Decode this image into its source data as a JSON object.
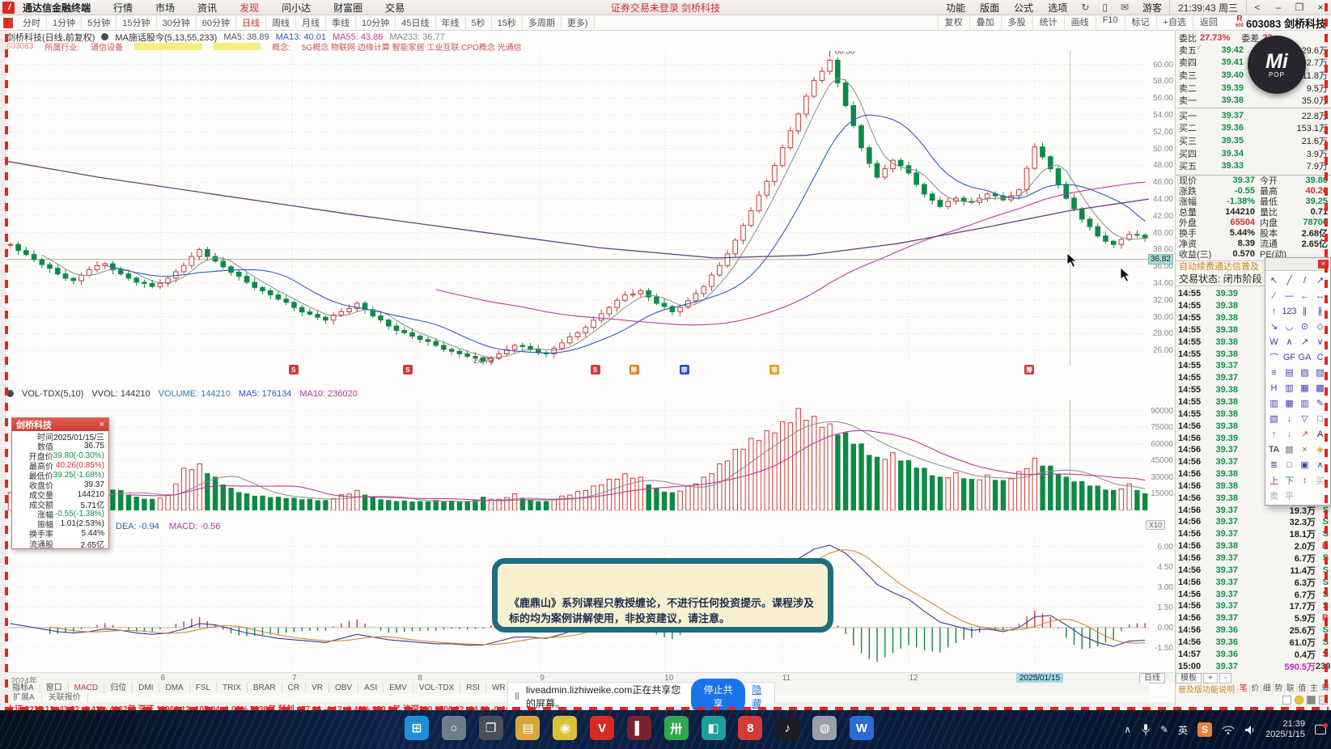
{
  "menubar": {
    "logo": "V",
    "items": [
      "通达信金融终端",
      "行情",
      "市场",
      "资讯",
      "发现",
      "问小达",
      "财富圈",
      "交易"
    ],
    "active": "发现",
    "notice": "证券交易未登录 剑桥科技",
    "right_items": [
      "功能",
      "版面",
      "公式",
      "选项"
    ],
    "icons": [
      "refresh-icon",
      "mobile-icon",
      "mail-icon"
    ],
    "user": "游客",
    "clock": "21:39:43 周三",
    "win_buttons": [
      "<",
      "–",
      "❐",
      "×"
    ]
  },
  "toolbar": {
    "periods": [
      "分时",
      "1分钟",
      "5分钟",
      "15分钟",
      "30分钟",
      "60分钟",
      "日线",
      "周线",
      "月线",
      "季线",
      "10分钟",
      "45日线",
      "年线",
      "5秒",
      "15秒",
      "多周期",
      "更多)"
    ],
    "active_period": "日线",
    "actions": [
      "复权",
      "叠加",
      "多股",
      "统计",
      "画线",
      "F10",
      "标记",
      "+自选",
      "返回"
    ]
  },
  "stock": {
    "margin_flag": "R",
    "sub_flag": "600",
    "code_name": "603083 剑桥科技"
  },
  "chart_header": {
    "title": "剑桥科技(日线,前复权)",
    "formula": "MA施话股今(5,13,55,233)",
    "ma5": "MA5: 38.89",
    "ma13": "MA13: 40.01",
    "ma55": "MA55: 43.86",
    "ma233": "MA233: 36.77",
    "code": "603083",
    "industry_label": "所属行业:",
    "industry": "通信设备",
    "concept_label": "概念:",
    "concepts": "5G概念 物联网 边缘计算 智能家居 工业互联 CPO概念 光通信"
  },
  "vol_header": {
    "name": "VOL-TDX(5,10)",
    "vvol": "VVOL: 144210",
    "volume": "VOLUME: 144210",
    "ma5": "MA5: 176134",
    "ma10": "MA10: 236020"
  },
  "macd_header": {
    "dea": "DEA: -0.94",
    "macd": "MACD: -0.56"
  },
  "chart": {
    "closes": [
      38.6,
      37.4,
      36.2,
      35.1,
      34.3,
      35.6,
      36.3,
      35.1,
      34.1,
      33.6,
      34.6,
      36.1,
      38.0,
      36.6,
      35.3,
      34.1,
      33.1,
      32.1,
      31.1,
      30.3,
      29.6,
      30.6,
      31.6,
      30.1,
      28.9,
      28.1,
      27.3,
      26.6,
      25.9,
      25.3,
      24.73,
      25.6,
      26.6,
      26.1,
      25.6,
      26.9,
      28.1,
      29.6,
      31.1,
      32.6,
      33.1,
      31.6,
      30.6,
      31.9,
      33.6,
      36.1,
      39.1,
      42.6,
      46.1,
      50.1,
      54.1,
      58.1,
      60.5,
      55.1,
      50.1,
      46.6,
      48.6,
      47.1,
      44.6,
      43.1,
      44.1,
      43.6,
      44.6,
      43.9,
      45.1,
      50.2,
      47.6,
      44.1,
      41.6,
      39.6,
      38.6,
      39.8,
      39.37
    ],
    "volumes": [
      16000,
      14000,
      12000,
      11000,
      10000,
      15000,
      22000,
      18000,
      12000,
      10000,
      14000,
      38000,
      42000,
      30000,
      20000,
      15000,
      13000,
      12000,
      11000,
      10000,
      9000,
      14000,
      18000,
      12000,
      9000,
      8500,
      8000,
      9000,
      8500,
      8000,
      12000,
      10000,
      15000,
      9000,
      8000,
      13000,
      17000,
      22000,
      28000,
      33000,
      30000,
      20000,
      16000,
      22000,
      30000,
      42000,
      55000,
      65000,
      72000,
      80000,
      92000,
      85000,
      78000,
      70000,
      60000,
      48000,
      52000,
      45000,
      38000,
      30000,
      34000,
      28000,
      32000,
      27000,
      35000,
      47000,
      40000,
      30000,
      26000,
      22000,
      18000,
      24000,
      15000
    ],
    "dif": [
      0.3,
      0.1,
      -0.1,
      -0.3,
      -0.4,
      -0.3,
      -0.1,
      -0.2,
      -0.4,
      -0.5,
      -0.4,
      -0.1,
      0.3,
      0.2,
      -0.1,
      -0.4,
      -0.6,
      -0.8,
      -0.9,
      -1.0,
      -1.1,
      -0.8,
      -0.5,
      -0.7,
      -0.9,
      -1.0,
      -1.1,
      -1.2,
      -1.2,
      -1.3,
      -1.3,
      -1.0,
      -0.7,
      -0.7,
      -0.8,
      -0.5,
      -0.1,
      0.3,
      0.7,
      1.0,
      1.0,
      0.6,
      0.2,
      0.3,
      0.7,
      1.2,
      1.9,
      2.7,
      3.5,
      4.3,
      5.1,
      5.8,
      6.1,
      5.5,
      4.4,
      3.2,
      2.6,
      2.1,
      1.2,
      0.4,
      0.1,
      -0.2,
      -0.1,
      -0.3,
      0.0,
      0.8,
      0.9,
      0.2,
      -0.6,
      -1.1,
      -1.4,
      -1.0,
      -0.94
    ],
    "ma233_anchors": [
      [
        0,
        48.5
      ],
      [
        0.08,
        46.6
      ],
      [
        0.18,
        44.6
      ],
      [
        0.3,
        42.2
      ],
      [
        0.42,
        40.0
      ],
      [
        0.52,
        38.2
      ],
      [
        0.62,
        37.0
      ],
      [
        0.7,
        37.3
      ],
      [
        0.78,
        38.7
      ],
      [
        0.86,
        40.7
      ],
      [
        0.93,
        42.6
      ],
      [
        1,
        44.0
      ]
    ],
    "price_ticks": [
      "60.00",
      "58.00",
      "56.00",
      "54.00",
      "52.00",
      "50.00",
      "48.00",
      "46.00",
      "44.00",
      "42.00",
      "40.00",
      "38.00",
      "36.00",
      "34.00",
      "32.00",
      "30.00",
      "28.00",
      "26.00"
    ],
    "vol_ticks": [
      "90000",
      "75000",
      "60000",
      "45000",
      "30000",
      "15000"
    ],
    "macd_ticks": [
      "6.00",
      "4.50",
      "3.00",
      "1.50",
      "0.00",
      "-1.50"
    ],
    "peak_label": "60.50",
    "trough_label": "24.73",
    "level_label": "36.82",
    "level_value": 36.82,
    "x10": "X10",
    "date_tag": "2025/01/15",
    "period_tag": "日线",
    "xaxis": [
      [
        "2024年",
        0.004
      ],
      [
        "6",
        0.135
      ],
      [
        "7",
        0.25
      ],
      [
        "8",
        0.36
      ],
      [
        "9",
        0.467
      ],
      [
        "10",
        0.576
      ],
      [
        "11",
        0.679
      ],
      [
        "12",
        0.79
      ],
      [
        "1",
        0.9
      ]
    ],
    "markers": [
      [
        0.247,
        "S",
        "#d23b3b"
      ],
      [
        0.347,
        "S",
        "#d23b3b"
      ],
      [
        0.511,
        "S",
        "#d23b3b"
      ],
      [
        0.545,
        "筹",
        "#e0821e"
      ],
      [
        0.589,
        "审",
        "#2a52c8"
      ],
      [
        0.668,
        "审",
        "#e0a11e"
      ],
      [
        0.891,
        "筹",
        "#d23b3b"
      ]
    ],
    "crosshair_f": 0.931
  },
  "indicator_tabs": {
    "items": [
      "指标A",
      "窗口",
      "MACD",
      "归位",
      "DMI",
      "DMA",
      "FSL",
      "TRIX",
      "BRAR",
      "CR",
      "VR",
      "OBV",
      "ASI",
      "EMV",
      "VOL-TDX",
      "RSI",
      "WR",
      "SAR",
      "KDJ",
      "CCI",
      "ROC",
      "MTM",
      "BOLL"
    ],
    "active": "MACD"
  },
  "bottom_row2": [
    "扩展A",
    "关联报价"
  ],
  "marquee": "上证 3227.12  -43.82  -0.43%  4662亿    深证 10960.12  -105.04  -1.03%  7336亿    科创 477.66  -4.12  -0.42%  939.0亿    沪深300 3706.02  -24.61  -0.64%",
  "right_panel": {
    "weibi_label": "委比",
    "weibi": "27.73%",
    "weicha_label": "委差",
    "weicha": "23",
    "ask_collapse": "Y",
    "asks": [
      [
        "卖五",
        "39.42",
        "29.6万"
      ],
      [
        "卖四",
        "39.41",
        "32.7万"
      ],
      [
        "卖三",
        "39.40",
        "11.8万"
      ],
      [
        "卖二",
        "39.39",
        "9.5万"
      ],
      [
        "卖一",
        "39.38",
        "35.0万"
      ]
    ],
    "bids": [
      [
        "买一",
        "39.37",
        "22.8万"
      ],
      [
        "买二",
        "39.36",
        "153.1万"
      ],
      [
        "买三",
        "39.35",
        "21.6万"
      ],
      [
        "买四",
        "39.34",
        "3.9万"
      ],
      [
        "买五",
        "39.33",
        "7.9万"
      ]
    ],
    "info": [
      [
        "现价",
        "39.37",
        "g",
        "今开",
        "39.80",
        "g"
      ],
      [
        "涨跌",
        "-0.55",
        "g",
        "最高",
        "40.26",
        "r"
      ],
      [
        "涨幅",
        "-1.38%",
        "g",
        "最低",
        "39.25",
        "g"
      ],
      [
        "总量",
        "144210",
        "k",
        "量比",
        "0.71",
        "k"
      ],
      [
        "外盘",
        "65504",
        "r",
        "内盘",
        "78706",
        "g"
      ],
      [
        "换手",
        "5.44%",
        "k",
        "股本",
        "2.68亿",
        "k"
      ],
      [
        "净资",
        "8.39",
        "k",
        "流通",
        "2.65亿",
        "k"
      ],
      [
        "收益(三)",
        "0.570",
        "k",
        "PE(动)",
        "",
        "k"
      ]
    ],
    "renew_notice": "自动续费通达信普及",
    "status": "交易状态: 闭市阶段",
    "ticks": [
      [
        "14:55",
        "39.39",
        "",
        ""
      ],
      [
        "14:55",
        "39.38",
        "",
        ""
      ],
      [
        "14:55",
        "39.38",
        "",
        ""
      ],
      [
        "14:55",
        "39.38",
        "",
        ""
      ],
      [
        "14:55",
        "39.38",
        "",
        ""
      ],
      [
        "14:55",
        "39.38",
        "",
        ""
      ],
      [
        "14:55",
        "39.37",
        "",
        ""
      ],
      [
        "14:55",
        "39.37",
        "",
        ""
      ],
      [
        "14:55",
        "39.38",
        "",
        ""
      ],
      [
        "14:55",
        "39.38",
        "",
        ""
      ],
      [
        "14:55",
        "39.38",
        "",
        ""
      ],
      [
        "14:56",
        "39.38",
        "",
        ""
      ],
      [
        "14:56",
        "39.39",
        "",
        ""
      ],
      [
        "14:56",
        "39.37",
        "",
        ""
      ],
      [
        "14:56",
        "39.37",
        "",
        ""
      ],
      [
        "14:56",
        "39.38",
        "",
        ""
      ],
      [
        "14:56",
        "39.38",
        "6.7万",
        "B"
      ],
      [
        "14:56",
        "39.38",
        "11.8万",
        "S"
      ],
      [
        "14:56",
        "39.37",
        "19.3万",
        "S"
      ],
      [
        "14:56",
        "39.37",
        "32.3万",
        "S"
      ],
      [
        "14:56",
        "39.37",
        "18.1万",
        "S"
      ],
      [
        "14:56",
        "39.38",
        "2.0万",
        "B"
      ],
      [
        "14:56",
        "39.37",
        "6.7万",
        "S"
      ],
      [
        "14:56",
        "39.37",
        "11.4万",
        "S"
      ],
      [
        "14:56",
        "39.37",
        "6.3万",
        "S"
      ],
      [
        "14:56",
        "39.37",
        "6.7万",
        "S"
      ],
      [
        "14:56",
        "39.37",
        "17.7万",
        "S"
      ],
      [
        "14:56",
        "39.37",
        "5.9万",
        "B"
      ],
      [
        "14:56",
        "39.36",
        "25.6万",
        "S"
      ],
      [
        "14:56",
        "39.36",
        "61.0万",
        "S"
      ],
      [
        "14:57",
        "39.36",
        "0.4万",
        "S"
      ],
      [
        "15:00",
        "39.37",
        "590.5万",
        "239"
      ]
    ],
    "bottom": {
      "template": "模板",
      "plus": "+",
      "minus": "-",
      "help": "普及版功能说明",
      "tabs": [
        "笔",
        "价",
        "细",
        "势",
        "联",
        "值",
        "主",
        "筹"
      ],
      "active_tab": "笔"
    }
  },
  "popup": {
    "title": "剑桥科技",
    "close": "×",
    "rows": [
      [
        "时间",
        "2025/01/15/三",
        "k"
      ],
      [
        "数值",
        "36.75",
        "k"
      ],
      [
        "开盘价",
        "39.80(-0.30%)",
        "g"
      ],
      [
        "最高价",
        "40.26(0.85%)",
        "r"
      ],
      [
        "最低价",
        "39.25(-1.68%)",
        "g"
      ],
      [
        "收盘价",
        "39.37",
        "k"
      ],
      [
        "成交量",
        "144210",
        "k"
      ],
      [
        "成交额",
        "5.71亿",
        "k"
      ],
      [
        "涨幅",
        "-0.55(-1.38%)",
        "g"
      ],
      [
        "振幅",
        "1.01(2.53%)",
        "k"
      ],
      [
        "换手率",
        "5.44%",
        "k"
      ],
      [
        "流通股",
        "2.65亿",
        "k"
      ]
    ]
  },
  "disclaimer": "《鹿鼎山》系列课程只教授缠论，不进行任何投资提示。课程涉及标的均为案例讲解使用，非投资建议，请注意。",
  "share_bar": {
    "text": "liveadmin.lizhiweike.com正在共享您的屏幕。",
    "stop": "停止共享",
    "hide": "隐藏"
  },
  "palette": {
    "close": "×",
    "rows": [
      [
        [
          "↖",
          "#3b3bb8"
        ],
        [
          "╱",
          "#3b3bb8"
        ],
        [
          "/",
          "#3b3bb8"
        ],
        [
          "↗",
          "#3b3bb8"
        ]
      ],
      [
        [
          "∕",
          "#3b3bb8"
        ],
        [
          "—",
          "#3b3bb8"
        ],
        [
          "←",
          "#3b3bb8"
        ],
        [
          "↔",
          "#3b3bb8"
        ]
      ],
      [
        [
          "↑",
          "#3b3bb8"
        ],
        [
          "123",
          "#3b3bb8"
        ],
        [
          "∥",
          "#3b3bb8"
        ],
        [
          "∦",
          "#3b3bb8"
        ]
      ],
      [
        [
          "↘",
          "#3b3bb8"
        ],
        [
          "◡",
          "#3b3bb8"
        ],
        [
          "⊙",
          "#3b3bb8"
        ],
        [
          "◇",
          "#3b3bb8"
        ]
      ],
      [
        [
          "W",
          "#3b3bb8"
        ],
        [
          "∧",
          "#3b3bb8"
        ],
        [
          "↗",
          "#3b3bb8"
        ],
        [
          "∨",
          "#3b3bb8"
        ]
      ],
      [
        [
          "⌒",
          "#3b3bb8"
        ],
        [
          "GF",
          "#3b3bb8"
        ],
        [
          "GA",
          "#3b3bb8"
        ],
        [
          "C",
          "#3b3bb8"
        ]
      ],
      [
        [
          "≡",
          "#3b3bb8"
        ],
        [
          "▤",
          "#3b3bb8"
        ],
        [
          "▨",
          "#3b3bb8"
        ],
        [
          "▧",
          "#3b3bb8"
        ]
      ],
      [
        [
          "H",
          "#3b3bb8"
        ],
        [
          "▥",
          "#3b3bb8"
        ],
        [
          "▦",
          "#3b3bb8"
        ],
        [
          "▩",
          "#3b3bb8"
        ]
      ],
      [
        [
          "▥",
          "#3b3bb8"
        ],
        [
          "▦",
          "#3b3bb8"
        ],
        [
          "▥",
          "#3b3bb8"
        ],
        [
          "✎",
          "#3b3bb8"
        ]
      ],
      [
        [
          "▧",
          "#3b3bb8"
        ],
        [
          "↓",
          "#3b3bb8"
        ],
        [
          "▽",
          "#3b3bb8"
        ],
        [
          "□",
          "#3b3bb8"
        ]
      ],
      [
        [
          "↑",
          "#d23b3b"
        ],
        [
          "↓",
          "#1a9a50"
        ],
        [
          "↗",
          "#d23b3b"
        ],
        [
          "A",
          "#222222"
        ]
      ],
      [
        [
          "TA",
          "#222222"
        ],
        [
          "▩",
          "#888888"
        ],
        [
          "×",
          "#d23b3b"
        ],
        [
          "◈",
          "#e0a11e"
        ]
      ],
      [
        [
          "≣",
          "#3b3bb8"
        ],
        [
          "□",
          "#3b3bb8"
        ],
        [
          "▣",
          "#3b3bb8"
        ],
        [
          "∧",
          "#3b3bb8"
        ]
      ],
      [
        [
          "上",
          "#d23b3b"
        ],
        [
          "下",
          "#1a9a50"
        ],
        [
          "↕",
          "#d23b3b"
        ]
      ],
      [
        [
          "买",
          "#aaaaaa"
        ],
        [
          "卖",
          "#aaaaaa"
        ],
        [
          "平",
          "#aaaaaa"
        ]
      ]
    ]
  },
  "mipop": {
    "line1": "Mi",
    "line2": "POP"
  },
  "taskbar": {
    "apps": [
      [
        "⊞",
        "#1e90d8"
      ],
      [
        "○",
        "#6f7c8a"
      ],
      [
        "❐",
        "#4a4f57"
      ],
      [
        "▤",
        "#d8a63a"
      ],
      [
        "◉",
        "#d8c23a"
      ],
      [
        "V",
        "#d42b22"
      ],
      [
        "▌",
        "#7a1f2e"
      ],
      [
        "卅",
        "#2fa84f"
      ],
      [
        "◧",
        "#1f9e98"
      ],
      [
        "8",
        "#d43a3a"
      ],
      [
        "♪",
        "#1c1c24"
      ],
      [
        "◍",
        "#9aa0a8"
      ],
      [
        "W",
        "#2b6bd4"
      ]
    ],
    "tray_up": "∧",
    "pen": "✎",
    "lang": "英",
    "s_badge": "S",
    "time": "21:39",
    "date": "2025/1/15"
  },
  "colors": {
    "up": "#cf3a35",
    "down": "#0e8a47",
    "accent_red": "#d03030",
    "green": "#0d9048",
    "magenta": "#c227c2",
    "cyan_tag": "#a7dbd8"
  }
}
